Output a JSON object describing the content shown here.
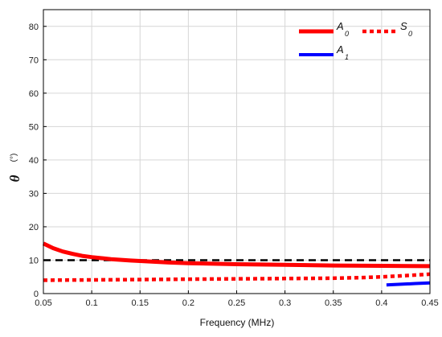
{
  "chart_data": {
    "type": "line",
    "xlabel": "Frequency (MHz)",
    "ylabel": "θ",
    "ylabel_unit": "(°)",
    "xlim": [
      0.05,
      0.45
    ],
    "ylim": [
      0,
      85
    ],
    "x_ticks": [
      "0.05",
      "0.1",
      "0.15",
      "0.2",
      "0.25",
      "0.3",
      "0.35",
      "0.4",
      "0.45"
    ],
    "y_ticks": [
      "0",
      "10",
      "20",
      "30",
      "40",
      "50",
      "60",
      "70",
      "80"
    ],
    "grid": true,
    "legend_position": "top-right",
    "reference_line": {
      "y": 10,
      "color": "#000000",
      "style": "dashed"
    },
    "series": [
      {
        "name": "A",
        "subscript": "0",
        "color": "#ff0000",
        "style": "solid",
        "x": [
          0.05,
          0.06,
          0.07,
          0.08,
          0.09,
          0.1,
          0.12,
          0.14,
          0.16,
          0.18,
          0.2,
          0.25,
          0.3,
          0.35,
          0.4,
          0.45
        ],
        "y": [
          15.0,
          13.6,
          12.6,
          11.9,
          11.3,
          10.9,
          10.3,
          9.9,
          9.6,
          9.3,
          9.1,
          8.8,
          8.6,
          8.4,
          8.3,
          8.2
        ]
      },
      {
        "name": "S",
        "subscript": "0",
        "color": "#ff0000",
        "style": "dotted",
        "x": [
          0.05,
          0.1,
          0.15,
          0.2,
          0.25,
          0.3,
          0.35,
          0.38,
          0.4,
          0.42,
          0.45
        ],
        "y": [
          4.0,
          4.1,
          4.2,
          4.3,
          4.4,
          4.5,
          4.6,
          4.8,
          5.0,
          5.3,
          5.8
        ]
      },
      {
        "name": "A",
        "subscript": "1",
        "color": "#0000ff",
        "style": "solid",
        "x": [
          0.405,
          0.42,
          0.435,
          0.45
        ],
        "y": [
          2.6,
          2.8,
          3.0,
          3.2
        ]
      }
    ]
  }
}
